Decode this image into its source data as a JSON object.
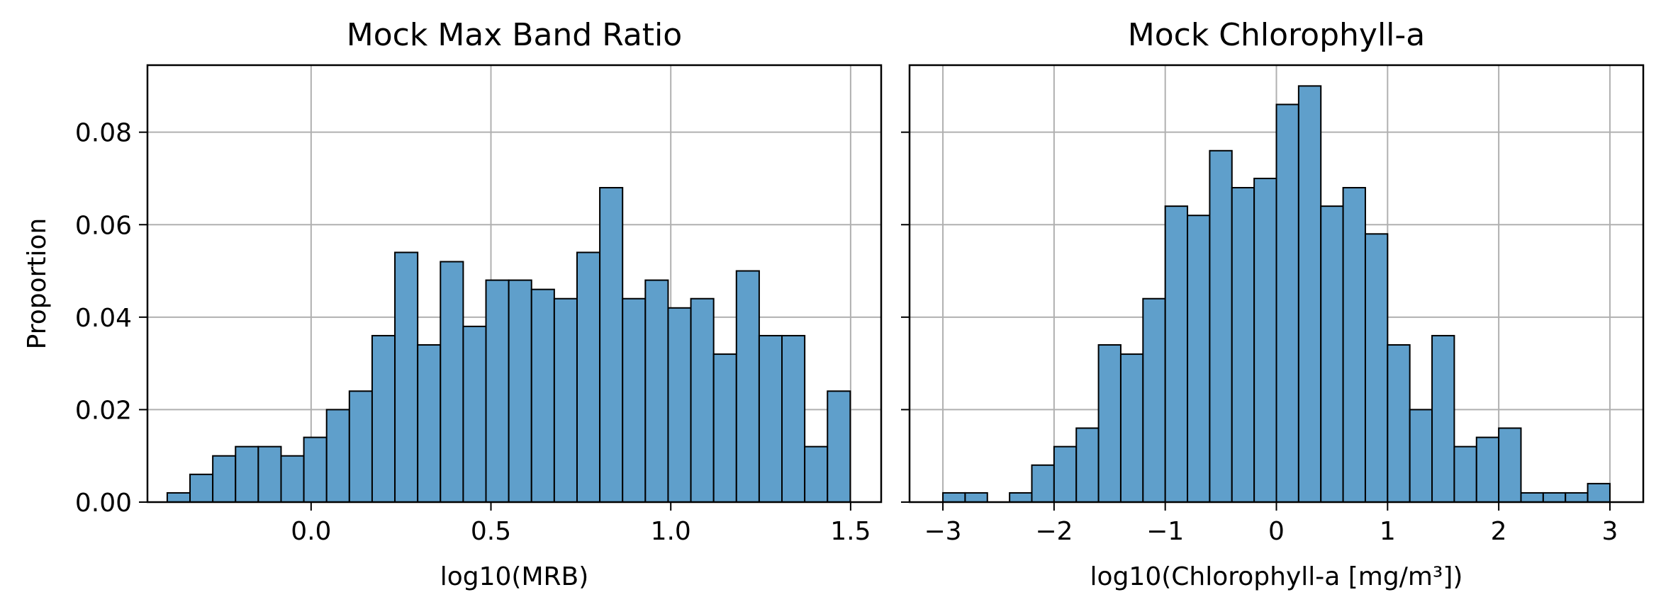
{
  "chart_data": [
    {
      "type": "bar",
      "title": "Mock Max Band Ratio",
      "xlabel": "log10(MRB)",
      "ylabel": "Proportion",
      "xlim": [
        -0.455,
        1.585
      ],
      "ylim": [
        0,
        0.0945
      ],
      "xticks": [
        0.0,
        0.5,
        1.0,
        1.5
      ],
      "xtick_labels": [
        "0.0",
        "0.5",
        "1.0",
        "1.5"
      ],
      "yticks": [
        0.0,
        0.02,
        0.04,
        0.06,
        0.08
      ],
      "ytick_labels": [
        "0.00",
        "0.02",
        "0.04",
        "0.06",
        "0.08"
      ],
      "grid": true,
      "bar_color": "#5f9fcb",
      "edge_color": "#000000",
      "bin_start": -0.4,
      "bin_width": 0.0633,
      "values": [
        0.002,
        0.006,
        0.01,
        0.012,
        0.012,
        0.01,
        0.014,
        0.02,
        0.024,
        0.036,
        0.054,
        0.034,
        0.052,
        0.038,
        0.048,
        0.048,
        0.046,
        0.044,
        0.054,
        0.068,
        0.044,
        0.048,
        0.042,
        0.044,
        0.032,
        0.05,
        0.036,
        0.036,
        0.012,
        0.024
      ]
    },
    {
      "type": "bar",
      "title": "Mock Chlorophyll-a",
      "xlabel": "log10(Chlorophyll-a [mg/m³])",
      "ylabel": "",
      "xlim": [
        -3.3,
        3.3
      ],
      "ylim": [
        0,
        0.0945
      ],
      "xticks": [
        -3,
        -2,
        -1,
        0,
        1,
        2,
        3
      ],
      "xtick_labels": [
        "−3",
        "−2",
        "−1",
        "0",
        "1",
        "2",
        "3"
      ],
      "yticks": [
        0.0,
        0.02,
        0.04,
        0.06,
        0.08
      ],
      "ytick_labels": [
        "",
        "",
        "",
        "",
        ""
      ],
      "grid": true,
      "bar_color": "#5f9fcb",
      "edge_color": "#000000",
      "bin_start": -3.0,
      "bin_width": 0.2,
      "values": [
        0.002,
        0.002,
        0.0,
        0.002,
        0.008,
        0.012,
        0.016,
        0.034,
        0.032,
        0.044,
        0.064,
        0.062,
        0.076,
        0.068,
        0.07,
        0.086,
        0.09,
        0.064,
        0.068,
        0.058,
        0.034,
        0.02,
        0.036,
        0.012,
        0.014,
        0.016,
        0.002,
        0.002,
        0.002,
        0.004
      ]
    }
  ]
}
